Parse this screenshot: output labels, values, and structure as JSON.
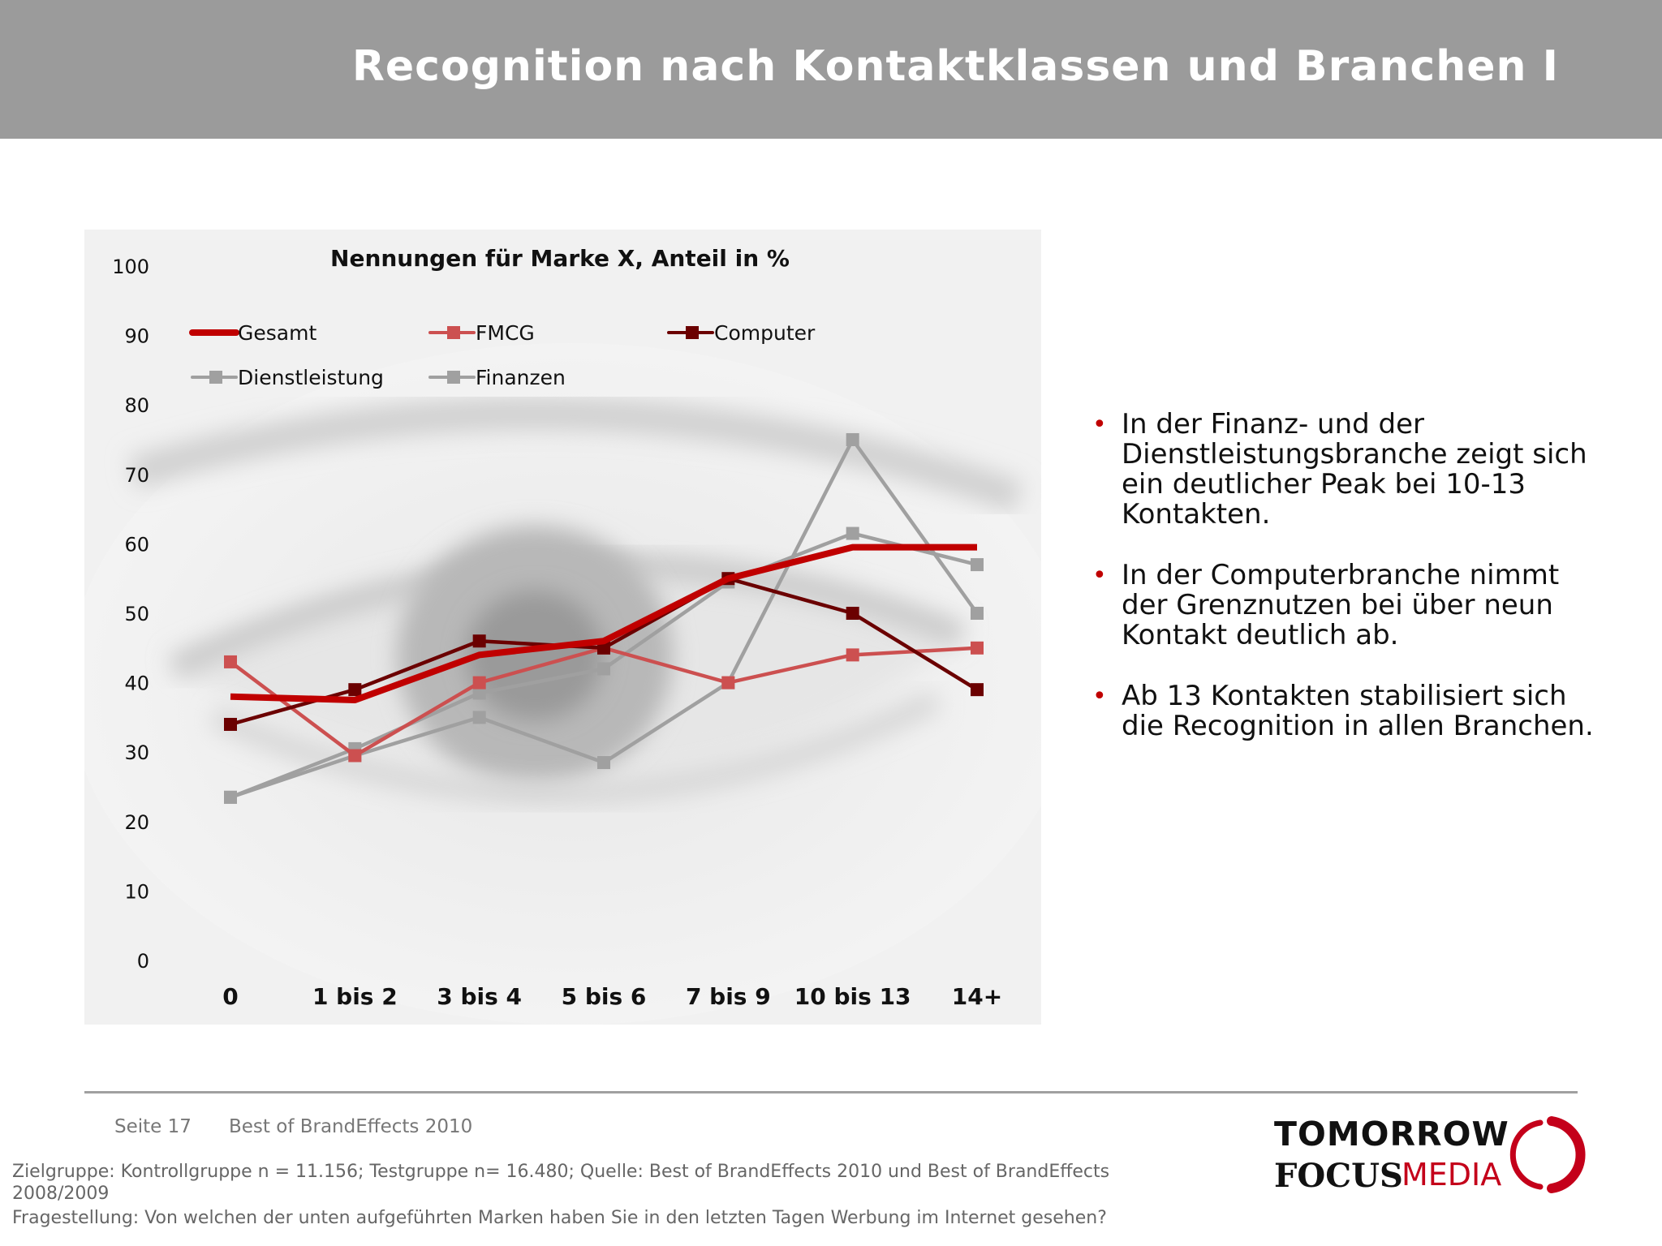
{
  "header": {
    "title": "Recognition nach Kontaktklassen und Branchen I"
  },
  "chart_data": {
    "type": "line",
    "title": "Nennungen für Marke X, Anteil in %",
    "categories": [
      "0",
      "1 bis 2",
      "3 bis 4",
      "5 bis 6",
      "7 bis 9",
      "10 bis 13",
      "14+"
    ],
    "y_ticks": [
      "0",
      "10",
      "20",
      "30",
      "40",
      "50",
      "60",
      "70",
      "80",
      "90",
      "100"
    ],
    "ylim": [
      0,
      100
    ],
    "legend_placement": "top",
    "series": [
      {
        "name": "Gesamt",
        "color": "#c00000",
        "marker": "none",
        "values": [
          38,
          37.5,
          44,
          46,
          55,
          59.5,
          59.5
        ]
      },
      {
        "name": "FMCG",
        "color": "#cc5050",
        "marker": "square",
        "values": [
          43,
          29.5,
          40,
          45,
          40,
          44,
          45
        ]
      },
      {
        "name": "Computer",
        "color": "#6b0000",
        "marker": "square",
        "values": [
          34,
          39,
          46,
          45,
          55,
          50,
          39
        ]
      },
      {
        "name": "Dienstleistung",
        "color": "#a0a0a0",
        "marker": "square",
        "values": [
          23.5,
          29.5,
          35,
          28.5,
          40,
          75,
          50
        ]
      },
      {
        "name": "Finanzen",
        "color": "#a0a0a0",
        "marker": "square",
        "values": [
          23.5,
          30.5,
          38.5,
          42,
          54.5,
          61.5,
          57
        ]
      }
    ]
  },
  "bullets": [
    "In der Finanz- und der Dienstleistungsbranche zeigt sich ein deutlicher Peak bei 10-13 Kontakten.",
    "In der Computerbranche nimmt der Grenznutzen bei über neun Kontakt deutlich ab.",
    "Ab 13 Kontakten stabilisiert sich die Recognition in allen Branchen."
  ],
  "footer": {
    "page": "Seite 17",
    "document": "Best of BrandEffects 2010",
    "target_group": "Zielgruppe: Kontrollgruppe n = 11.156; Testgruppe n= 16.480; Quelle: Best of BrandEffects 2010 und Best of BrandEffects 2008/2009",
    "question": "Fragestellung: Von welchen der unten aufgeführten Marken haben Sie in den letzten Tagen Werbung im Internet gesehen?"
  },
  "logo": {
    "line1": "TOMORROW",
    "focus": "FOCUS",
    "media": "MEDIA"
  }
}
